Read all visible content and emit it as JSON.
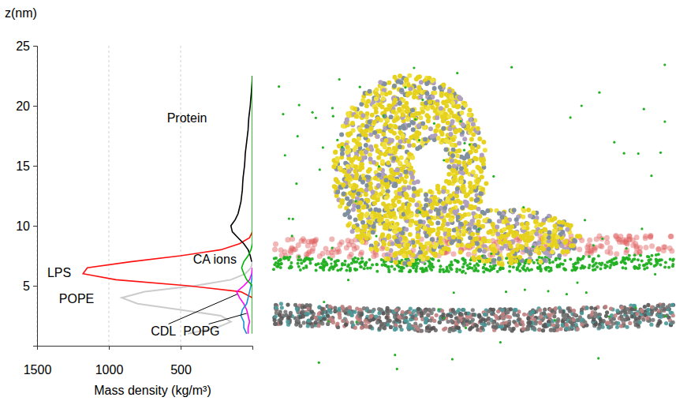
{
  "chart_data": {
    "type": "line",
    "orientation": "horizontal",
    "grid": true,
    "x_label": "Mass density (kg/m³)",
    "y_label": "z(nm)",
    "xlim": [
      1500,
      0
    ],
    "xticks": [
      1500,
      1000,
      500
    ],
    "ylim": [
      0,
      25
    ],
    "yticks": [
      5,
      10,
      15,
      20,
      25
    ],
    "y": [
      1.0,
      1.5,
      2.0,
      2.5,
      3.0,
      3.5,
      4.0,
      4.5,
      5.0,
      5.5,
      6.0,
      6.5,
      7.0,
      7.5,
      8.0,
      8.5,
      9.0,
      9.5,
      10.0,
      10.5,
      11.0,
      11.5,
      12.0,
      12.5,
      13.0,
      13.5,
      14.0,
      14.5,
      15.0,
      15.5,
      16.0,
      16.5,
      17.0,
      17.5,
      18.0,
      18.5,
      19.0,
      19.5,
      20.0,
      20.5,
      21.0,
      21.5,
      22.0,
      22.5
    ],
    "series": [
      {
        "name": "Protein",
        "color": "#000000",
        "values": [
          null,
          null,
          null,
          null,
          null,
          null,
          null,
          null,
          null,
          null,
          null,
          null,
          5,
          15,
          30,
          60,
          100,
          140,
          150,
          120,
          100,
          90,
          80,
          75,
          70,
          68,
          65,
          60,
          55,
          52,
          50,
          45,
          40,
          35,
          30,
          28,
          25,
          20,
          15,
          12,
          8,
          5,
          2,
          0
        ]
      },
      {
        "name": "LPS",
        "color": "#ff1010",
        "values": [
          null,
          null,
          null,
          null,
          null,
          null,
          0,
          80,
          450,
          950,
          1180,
          1150,
          850,
          500,
          220,
          90,
          20,
          0,
          null,
          null,
          null,
          null,
          null,
          null,
          null,
          null,
          null,
          null,
          null,
          null,
          null,
          null,
          null,
          null,
          null,
          null,
          null,
          null,
          null,
          null,
          null,
          null,
          null,
          null
        ]
      },
      {
        "name": "POPE",
        "color": "#cccccc",
        "values": [
          450,
          250,
          150,
          220,
          500,
          800,
          910,
          750,
          400,
          150,
          50,
          10,
          0,
          null,
          null,
          null,
          null,
          null,
          null,
          null,
          null,
          null,
          null,
          null,
          null,
          null,
          null,
          null,
          null,
          null,
          null,
          null,
          null,
          null,
          null,
          null,
          null,
          null,
          null,
          null,
          null,
          null,
          null,
          null
        ]
      },
      {
        "name": "CDL",
        "color": "#ff00ff",
        "values": [
          30,
          30,
          20,
          30,
          40,
          60,
          90,
          110,
          60,
          20,
          5,
          0,
          null,
          null,
          null,
          null,
          null,
          null,
          null,
          null,
          null,
          null,
          null,
          null,
          null,
          null,
          null,
          null,
          null,
          null,
          null,
          null,
          null,
          null,
          null,
          null,
          null,
          null,
          null,
          null,
          null,
          null,
          null,
          null
        ]
      },
      {
        "name": "POPG",
        "color": "#1a8fd6",
        "values": [
          40,
          60,
          60,
          80,
          70,
          40,
          30,
          20,
          10,
          5,
          0,
          null,
          null,
          null,
          null,
          null,
          null,
          null,
          null,
          null,
          null,
          null,
          null,
          null,
          null,
          null,
          null,
          null,
          null,
          null,
          null,
          null,
          null,
          null,
          null,
          null,
          null,
          null,
          null,
          null,
          null,
          null,
          null,
          null
        ]
      },
      {
        "name": "CA ions",
        "color": "#00b400",
        "values": [
          0,
          0,
          0,
          0,
          0,
          0,
          0,
          0,
          0,
          40,
          60,
          75,
          60,
          30,
          10,
          0,
          0,
          0,
          0,
          0,
          0,
          0,
          0,
          0,
          0,
          0,
          0,
          0,
          0,
          0,
          0,
          0,
          0,
          0,
          0,
          0,
          0,
          0,
          0,
          0,
          0,
          0,
          0,
          0
        ]
      }
    ]
  }
}
